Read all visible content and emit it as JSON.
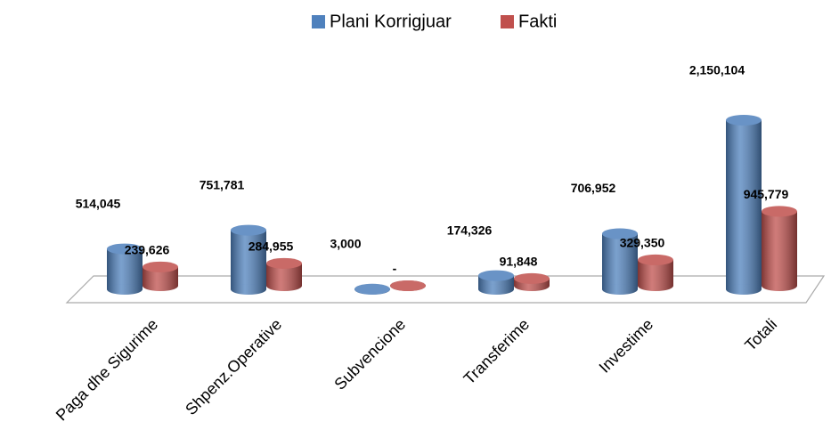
{
  "chart_data": {
    "type": "bar3d",
    "categories": [
      "Paga dhe Sigurime",
      "Shpenz.Operative",
      "Subvencione",
      "Transferime",
      "Investime",
      "Totali"
    ],
    "series": [
      {
        "name": "Plani Korrigjuar",
        "color": "#4f81bd",
        "values": [
          514045,
          751781,
          3000,
          174326,
          706952,
          2150104
        ],
        "value_labels": [
          "514,045",
          "751,781",
          "3,000",
          "174,326",
          "706,952",
          "2,150,104"
        ]
      },
      {
        "name": "Fakti",
        "color": "#c0504d",
        "values": [
          239626,
          284955,
          0,
          91848,
          329350,
          945779
        ],
        "value_labels": [
          "239,626",
          "284,955",
          "-",
          "91,848",
          "329,350",
          "945,779"
        ]
      }
    ],
    "legend": "top"
  }
}
